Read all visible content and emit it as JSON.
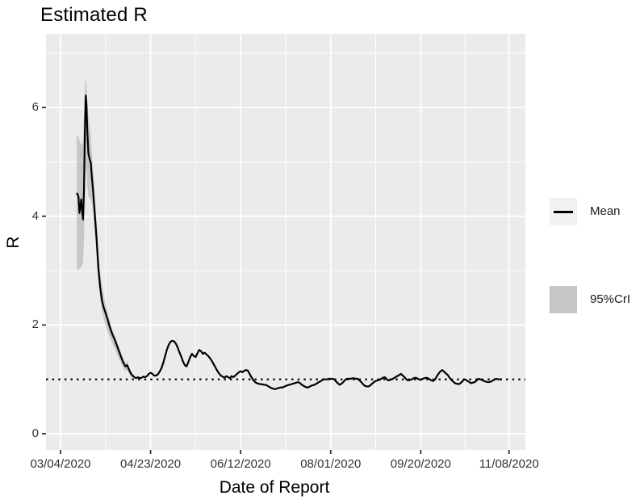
{
  "chart": {
    "title": "Estimated R",
    "x_axis": {
      "title": "Date of Report"
    },
    "y_axis": {
      "title": "R"
    }
  },
  "legend": {
    "position": "right",
    "items": [
      {
        "label": "Mean",
        "type": "line",
        "key_bg": "#f1f1f1",
        "line_color": "#000000"
      },
      {
        "label": "95%CrI",
        "type": "fill",
        "fill_color": "#c6c6c6"
      }
    ]
  },
  "colors": {
    "panel_bg": "#ebebeb",
    "grid": "#ffffff",
    "mean_line": "#000000",
    "reference_line": "#000000",
    "ci_band": "#9b9b9b",
    "tick_mark": "#333333",
    "tick_text": "#333333"
  },
  "chart_data": {
    "type": "line",
    "title": "Estimated R",
    "xlabel": "Date of Report",
    "ylabel": "R",
    "x_unit": "days since 03/04/2020",
    "grid": true,
    "legend_position": "right",
    "reference_line_y": 1,
    "x_ticks": [
      {
        "day": 0,
        "label": "03/04/2020"
      },
      {
        "day": 50,
        "label": "04/23/2020"
      },
      {
        "day": 100,
        "label": "06/12/2020"
      },
      {
        "day": 150,
        "label": "08/01/2020"
      },
      {
        "day": 200,
        "label": "09/20/2020"
      },
      {
        "day": 249,
        "label": "11/08/2020"
      }
    ],
    "x_minor_days": [
      25,
      75,
      125,
      175,
      224.5
    ],
    "y_ticks": [
      0,
      2,
      4,
      6
    ],
    "y_minor": [
      1,
      3,
      5,
      7
    ],
    "x_domain": [
      -8.06,
      258.1
    ],
    "y_domain": [
      -0.297,
      7.353
    ],
    "series": [
      {
        "name": "Mean",
        "type": "line",
        "points": [
          [
            9,
            4.43
          ],
          [
            9.5,
            4.4
          ],
          [
            10,
            4.35
          ],
          [
            10.5,
            4.06
          ],
          [
            11,
            4.18
          ],
          [
            11.5,
            4.31
          ],
          [
            12,
            4.1
          ],
          [
            12.5,
            3.94
          ],
          [
            13,
            4.45
          ],
          [
            13.5,
            5.5
          ],
          [
            14,
            6.22
          ],
          [
            14.4,
            6.05
          ],
          [
            14.9,
            5.55
          ],
          [
            15.5,
            5.15
          ],
          [
            16.2,
            5.05
          ],
          [
            16.8,
            4.98
          ],
          [
            17.4,
            4.72
          ],
          [
            18,
            4.5
          ],
          [
            19,
            4.05
          ],
          [
            20,
            3.6
          ],
          [
            21,
            3.05
          ],
          [
            22,
            2.7
          ],
          [
            23,
            2.45
          ],
          [
            24,
            2.32
          ],
          [
            25,
            2.22
          ],
          [
            26,
            2.12
          ],
          [
            27,
            2.0
          ],
          [
            28,
            1.9
          ],
          [
            29,
            1.81
          ],
          [
            30,
            1.74
          ],
          [
            31,
            1.65
          ],
          [
            32,
            1.56
          ],
          [
            33,
            1.47
          ],
          [
            34,
            1.38
          ],
          [
            35,
            1.3
          ],
          [
            36,
            1.24
          ],
          [
            37,
            1.26
          ],
          [
            38,
            1.18
          ],
          [
            39,
            1.11
          ],
          [
            40,
            1.07
          ],
          [
            41,
            1.04
          ],
          [
            42,
            1.02
          ],
          [
            43,
            1.04
          ],
          [
            44,
            1.02
          ],
          [
            45,
            1.03
          ],
          [
            46,
            1.05
          ],
          [
            47,
            1.04
          ],
          [
            48,
            1.06
          ],
          [
            49,
            1.1
          ],
          [
            50,
            1.12
          ],
          [
            51,
            1.1
          ],
          [
            52,
            1.07
          ],
          [
            53,
            1.07
          ],
          [
            54,
            1.09
          ],
          [
            55,
            1.14
          ],
          [
            56,
            1.2
          ],
          [
            57,
            1.3
          ],
          [
            58,
            1.42
          ],
          [
            59,
            1.54
          ],
          [
            60,
            1.63
          ],
          [
            61,
            1.69
          ],
          [
            62,
            1.71
          ],
          [
            63,
            1.7
          ],
          [
            64,
            1.66
          ],
          [
            65,
            1.59
          ],
          [
            66,
            1.5
          ],
          [
            67,
            1.42
          ],
          [
            68,
            1.33
          ],
          [
            69,
            1.26
          ],
          [
            70,
            1.24
          ],
          [
            71,
            1.32
          ],
          [
            72,
            1.41
          ],
          [
            73,
            1.47
          ],
          [
            74,
            1.43
          ],
          [
            75,
            1.41
          ],
          [
            76,
            1.48
          ],
          [
            77,
            1.54
          ],
          [
            78,
            1.52
          ],
          [
            79,
            1.47
          ],
          [
            80,
            1.49
          ],
          [
            81,
            1.46
          ],
          [
            82,
            1.43
          ],
          [
            83,
            1.39
          ],
          [
            84,
            1.34
          ],
          [
            85,
            1.28
          ],
          [
            86,
            1.22
          ],
          [
            87,
            1.16
          ],
          [
            88,
            1.11
          ],
          [
            89,
            1.07
          ],
          [
            90,
            1.05
          ],
          [
            91,
            1.03
          ],
          [
            92,
            1.06
          ],
          [
            93,
            1.04
          ],
          [
            94,
            1.02
          ],
          [
            95,
            1.06
          ],
          [
            96,
            1.04
          ],
          [
            97,
            1.07
          ],
          [
            98,
            1.1
          ],
          [
            99,
            1.13
          ],
          [
            100,
            1.15
          ],
          [
            101,
            1.13
          ],
          [
            102,
            1.16
          ],
          [
            103,
            1.17
          ],
          [
            104,
            1.16
          ],
          [
            105,
            1.1
          ],
          [
            106,
            1.04
          ],
          [
            107,
            0.99
          ],
          [
            108,
            0.95
          ],
          [
            109,
            0.93
          ],
          [
            110,
            0.92
          ],
          [
            111,
            0.91
          ],
          [
            112,
            0.91
          ],
          [
            113,
            0.9
          ],
          [
            114,
            0.9
          ],
          [
            115,
            0.88
          ],
          [
            116,
            0.86
          ],
          [
            117,
            0.84
          ],
          [
            118,
            0.83
          ],
          [
            119,
            0.82
          ],
          [
            120,
            0.83
          ],
          [
            121,
            0.84
          ],
          [
            122,
            0.85
          ],
          [
            123,
            0.85
          ],
          [
            124,
            0.86
          ],
          [
            125,
            0.88
          ],
          [
            126,
            0.89
          ],
          [
            127,
            0.9
          ],
          [
            128,
            0.91
          ],
          [
            129,
            0.92
          ],
          [
            130,
            0.93
          ],
          [
            131,
            0.94
          ],
          [
            132,
            0.95
          ],
          [
            133,
            0.93
          ],
          [
            134,
            0.9
          ],
          [
            135,
            0.88
          ],
          [
            136,
            0.86
          ],
          [
            137,
            0.85
          ],
          [
            138,
            0.86
          ],
          [
            139,
            0.88
          ],
          [
            140,
            0.89
          ],
          [
            141,
            0.9
          ],
          [
            142,
            0.92
          ],
          [
            143,
            0.94
          ],
          [
            144,
            0.96
          ],
          [
            145,
            0.98
          ],
          [
            146,
            1.0
          ],
          [
            147,
            1.0
          ],
          [
            148,
            1.0
          ],
          [
            149,
            1.01
          ],
          [
            150,
            1.01
          ],
          [
            151,
            1.01
          ],
          [
            152,
            1.0
          ],
          [
            153,
            0.96
          ],
          [
            154,
            0.93
          ],
          [
            155,
            0.9
          ],
          [
            156,
            0.92
          ],
          [
            157,
            0.95
          ],
          [
            158,
            0.99
          ],
          [
            159,
            1.01
          ],
          [
            160,
            1.01
          ],
          [
            161,
            1.01
          ],
          [
            162,
            1.02
          ],
          [
            163,
            1.02
          ],
          [
            164,
            1.01
          ],
          [
            165,
            1.01
          ],
          [
            166,
            0.98
          ],
          [
            167,
            0.95
          ],
          [
            168,
            0.91
          ],
          [
            169,
            0.88
          ],
          [
            170,
            0.87
          ],
          [
            171,
            0.87
          ],
          [
            172,
            0.89
          ],
          [
            173,
            0.92
          ],
          [
            174,
            0.95
          ],
          [
            175,
            0.97
          ],
          [
            176,
            0.98
          ],
          [
            177,
            0.99
          ],
          [
            178,
            1.01
          ],
          [
            179,
            1.03
          ],
          [
            180,
            1.04
          ],
          [
            181,
            1.01
          ],
          [
            182,
            0.98
          ],
          [
            183,
            0.99
          ],
          [
            184,
            1.0
          ],
          [
            185,
            1.02
          ],
          [
            186,
            1.04
          ],
          [
            187,
            1.06
          ],
          [
            188,
            1.08
          ],
          [
            189,
            1.1
          ],
          [
            190,
            1.07
          ],
          [
            191,
            1.04
          ],
          [
            192,
            1.0
          ],
          [
            193,
            0.98
          ],
          [
            194,
            0.99
          ],
          [
            195,
            1.0
          ],
          [
            196,
            1.02
          ],
          [
            197,
            1.03
          ],
          [
            198,
            1.02
          ],
          [
            199,
            1.0
          ],
          [
            200,
            0.99
          ],
          [
            201,
            1.01
          ],
          [
            202,
            1.02
          ],
          [
            203,
            1.03
          ],
          [
            204,
            1.02
          ],
          [
            205,
            1.0
          ],
          [
            206,
            0.98
          ],
          [
            207,
            0.97
          ],
          [
            208,
            1.0
          ],
          [
            209,
            1.06
          ],
          [
            210,
            1.11
          ],
          [
            211,
            1.15
          ],
          [
            212,
            1.17
          ],
          [
            213,
            1.14
          ],
          [
            214,
            1.11
          ],
          [
            215,
            1.08
          ],
          [
            216,
            1.03
          ],
          [
            217,
            0.99
          ],
          [
            218,
            0.96
          ],
          [
            219,
            0.93
          ],
          [
            220,
            0.92
          ],
          [
            221,
            0.91
          ],
          [
            222,
            0.93
          ],
          [
            223,
            0.96
          ],
          [
            224,
            1.0
          ],
          [
            225,
            0.99
          ],
          [
            226,
            0.97
          ],
          [
            227,
            0.95
          ],
          [
            228,
            0.93
          ],
          [
            229,
            0.94
          ],
          [
            230,
            0.95
          ],
          [
            231,
            0.98
          ],
          [
            232,
            1.01
          ],
          [
            233,
            1.0
          ],
          [
            234,
            0.99
          ],
          [
            235,
            0.97
          ],
          [
            236,
            0.96
          ],
          [
            237,
            0.95
          ],
          [
            238,
            0.95
          ],
          [
            239,
            0.96
          ],
          [
            240,
            0.98
          ],
          [
            241,
            1.0
          ],
          [
            242,
            1.01
          ],
          [
            243,
            1.0
          ],
          [
            244,
            1.0
          ],
          [
            245,
            1.0
          ]
        ]
      },
      {
        "name": "95%CrI",
        "type": "band",
        "points": [
          [
            9,
            3.05,
            5.5
          ],
          [
            10,
            3.0,
            5.45
          ],
          [
            11,
            3.05,
            5.35
          ],
          [
            12,
            3.1,
            5.3
          ],
          [
            12.5,
            3.15,
            5.4
          ],
          [
            13,
            3.55,
            5.9
          ],
          [
            13.5,
            4.1,
            6.35
          ],
          [
            14,
            4.85,
            6.55
          ],
          [
            14.4,
            4.85,
            6.45
          ],
          [
            14.9,
            4.55,
            6.1
          ],
          [
            15.5,
            4.35,
            5.85
          ],
          [
            16.2,
            4.35,
            5.65
          ],
          [
            16.8,
            4.3,
            5.5
          ],
          [
            17.4,
            4.25,
            5.15
          ],
          [
            18,
            4.1,
            4.9
          ],
          [
            19,
            3.7,
            4.45
          ],
          [
            20,
            3.28,
            3.95
          ],
          [
            21,
            2.8,
            3.4
          ],
          [
            22,
            2.48,
            3.0
          ],
          [
            23,
            2.25,
            2.72
          ],
          [
            24,
            2.12,
            2.55
          ],
          [
            25,
            1.98,
            2.38
          ],
          [
            26,
            1.9,
            2.25
          ],
          [
            27,
            1.8,
            2.12
          ],
          [
            28,
            1.72,
            2.0
          ],
          [
            29,
            1.64,
            1.9
          ],
          [
            30,
            1.57,
            1.82
          ],
          [
            31,
            1.49,
            1.73
          ],
          [
            32,
            1.41,
            1.64
          ],
          [
            33,
            1.34,
            1.55
          ],
          [
            34,
            1.27,
            1.46
          ],
          [
            35,
            1.2,
            1.38
          ],
          [
            36,
            1.15,
            1.31
          ],
          [
            37,
            1.18,
            1.33
          ],
          [
            38,
            1.11,
            1.24
          ],
          [
            39,
            1.05,
            1.17
          ],
          [
            40,
            1.01,
            1.12
          ]
        ]
      }
    ]
  }
}
